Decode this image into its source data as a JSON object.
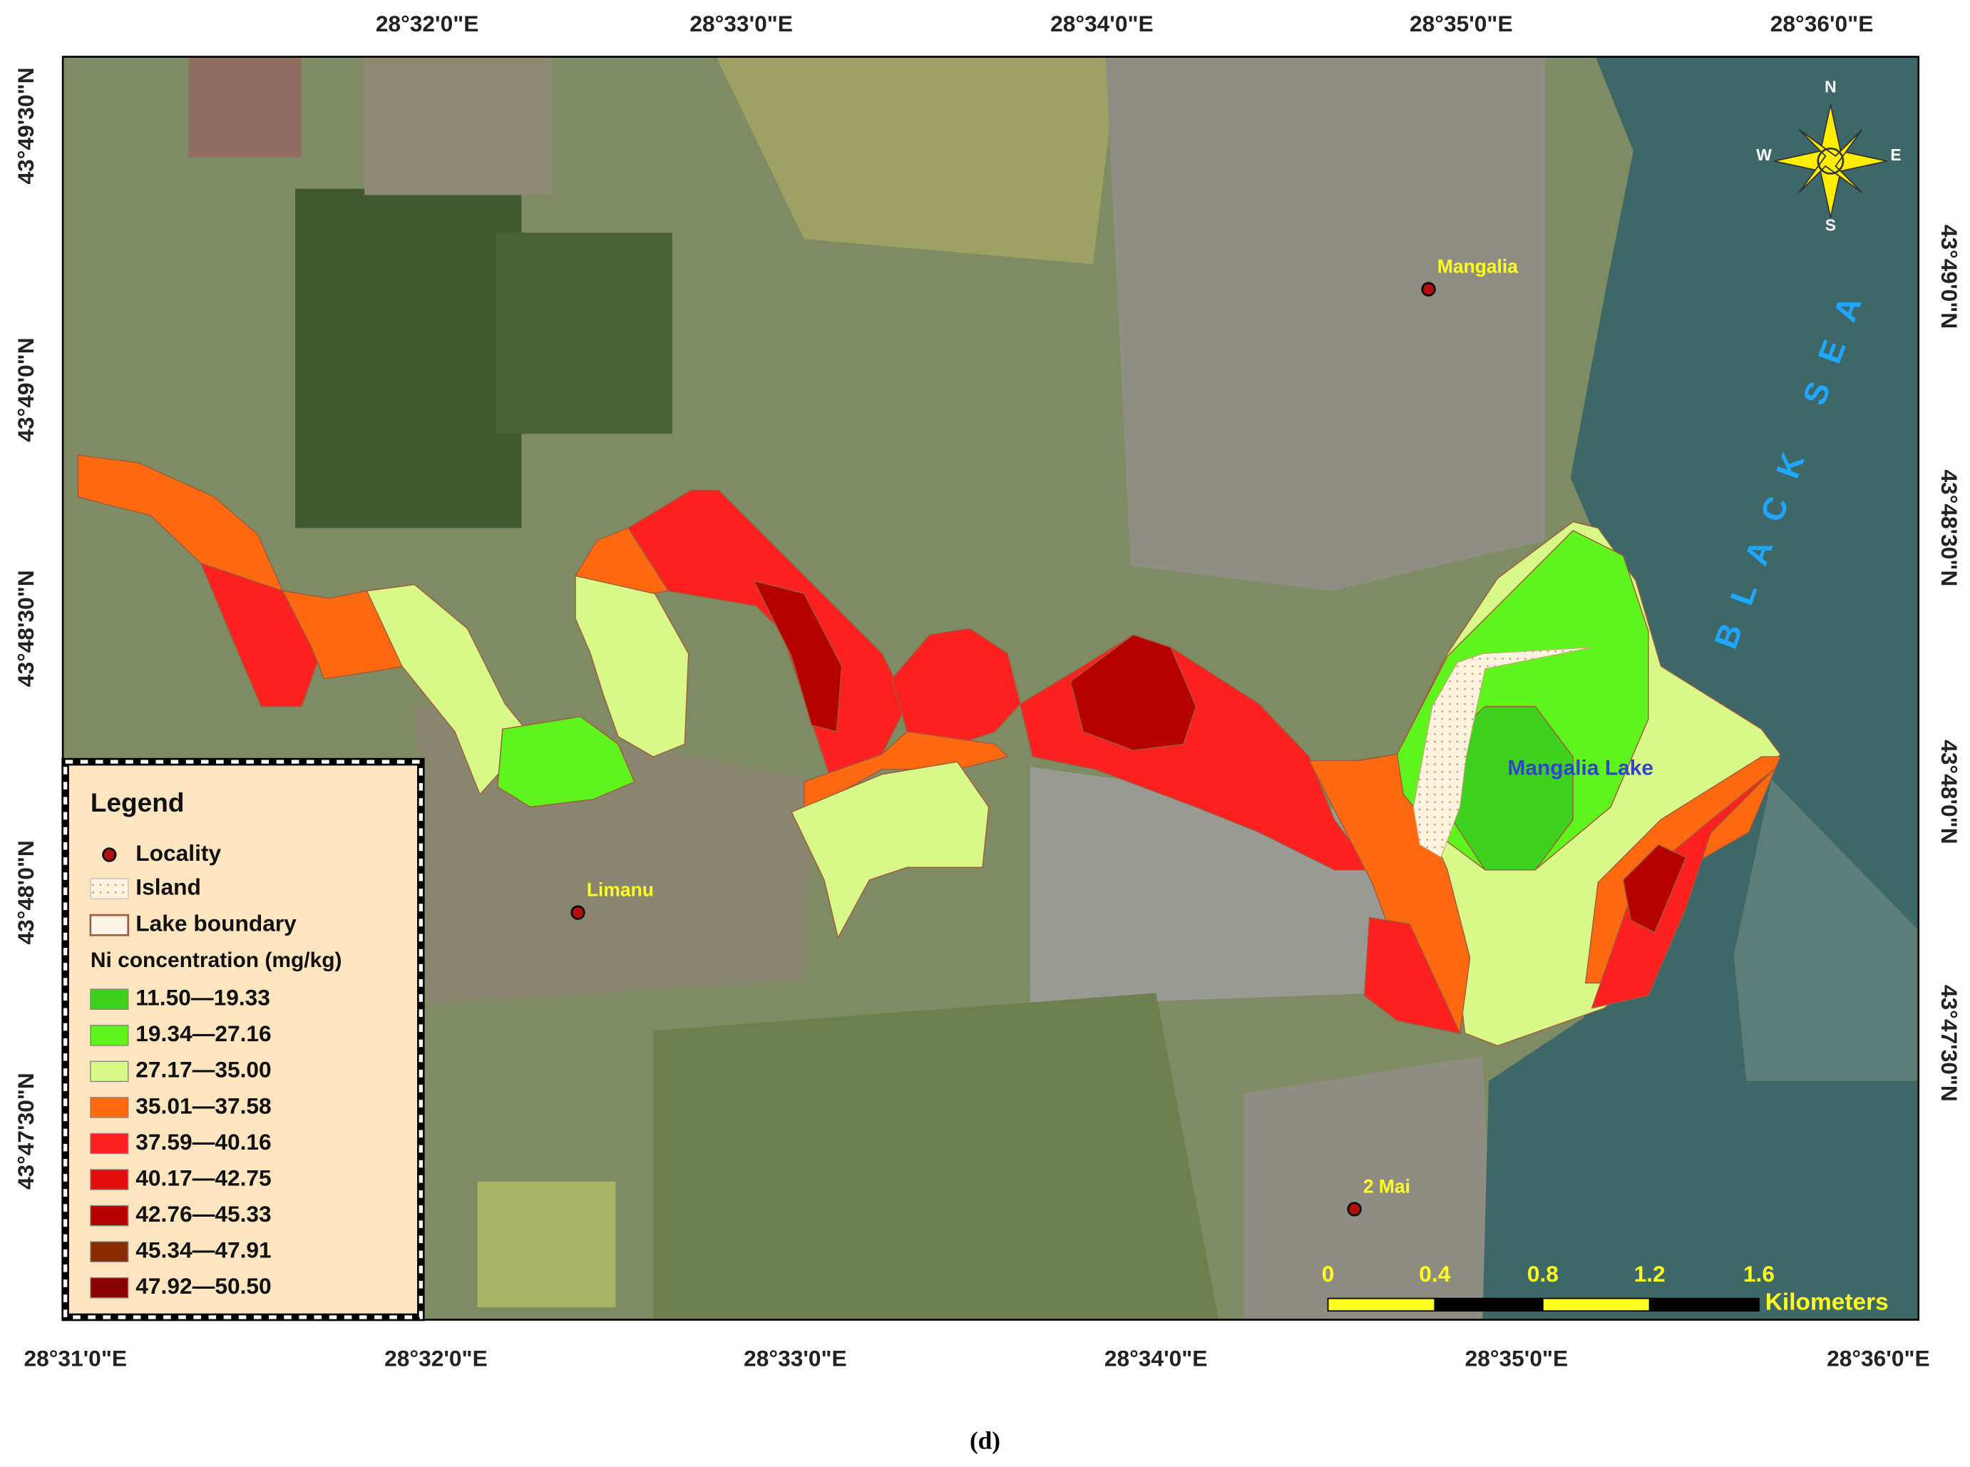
{
  "map": {
    "top_longitude_labels": [
      "28°32'0\"E",
      "28°33'0\"E",
      "28°34'0\"E",
      "28°35'0\"E",
      "28°36'0\"E"
    ],
    "bottom_longitude_labels": [
      "28°31'0\"E",
      "28°32'0\"E",
      "28°33'0\"E",
      "28°34'0\"E",
      "28°35'0\"E",
      "28°36'0\"E"
    ],
    "left_latitude_labels": [
      "43°49'30\"N",
      "43°49'0\"N",
      "43°48'30\"N",
      "43°48'0\"N",
      "43°47'30\"N"
    ],
    "right_latitude_labels": [
      "43°49'0\"N",
      "43°48'30\"N",
      "43°48'0\"N",
      "43°47'30\"N"
    ],
    "places": [
      "Mangalia",
      "Limanu",
      "2 Mai"
    ],
    "water_labels": [
      "BLACK SEA",
      "Mangalia Lake"
    ],
    "compass": [
      "N",
      "S",
      "W",
      "E"
    ],
    "legend": {
      "title": "Legend",
      "items": [
        "Locality",
        "Island",
        "Lake boundary"
      ],
      "concentration_title": "Ni concentration (mg/kg)",
      "classes": [
        {
          "label": "11.50—19.33",
          "color": "#3fd11f"
        },
        {
          "label": "19.34—27.16",
          "color": "#5ff51c"
        },
        {
          "label": "27.17—35.00",
          "color": "#d8f98a"
        },
        {
          "label": "35.01—37.58",
          "color": "#ff6a10"
        },
        {
          "label": "37.59—40.16",
          "color": "#ff2020"
        },
        {
          "label": "40.17—42.75",
          "color": "#e30e0e"
        },
        {
          "label": "42.76—45.33",
          "color": "#b60000"
        },
        {
          "label": "45.34—47.91",
          "color": "#8a2a00"
        },
        {
          "label": "47.92—50.50",
          "color": "#8b0000"
        }
      ]
    },
    "scale_bar": {
      "ticks": [
        "0",
        "0.4",
        "0.8",
        "1.2",
        "1.6"
      ],
      "unit": "Kilometers"
    },
    "caption": "(d)"
  }
}
